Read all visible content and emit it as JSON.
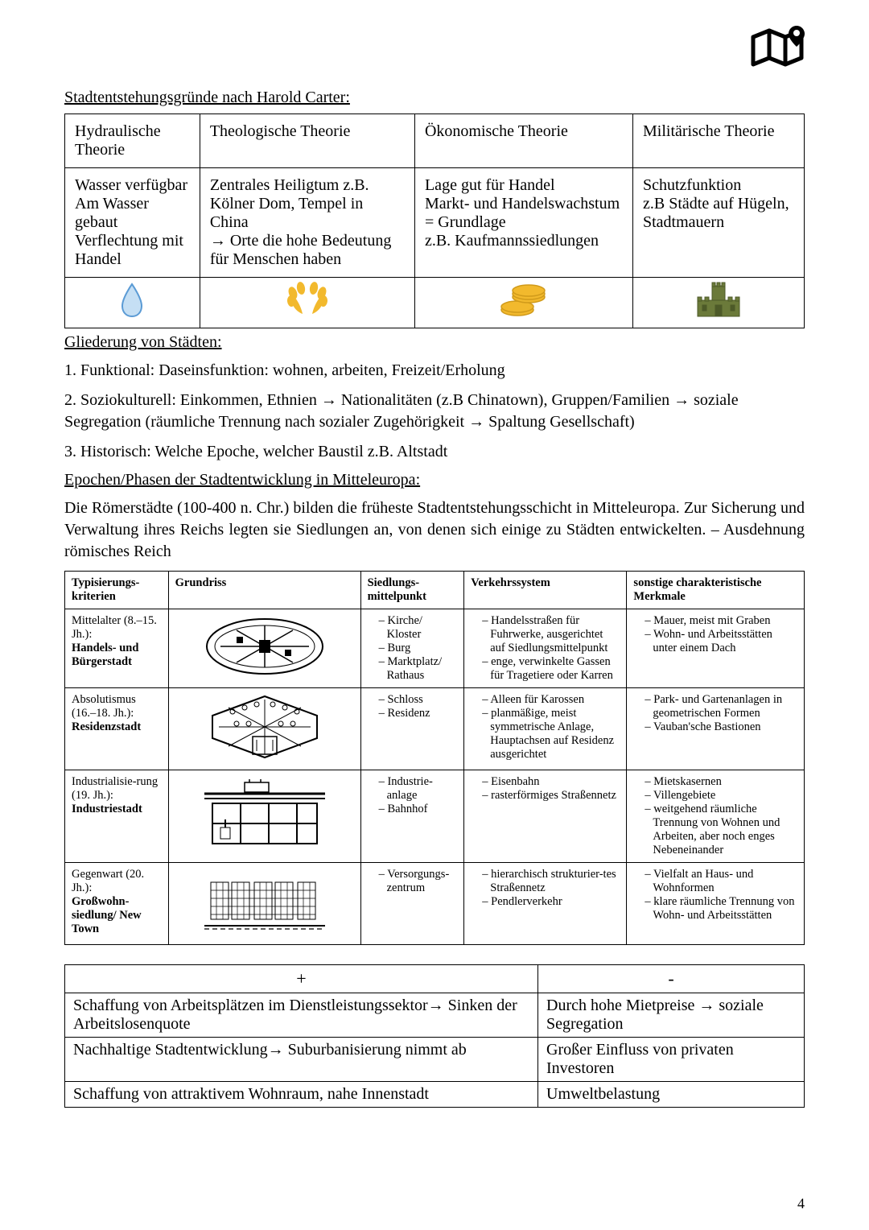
{
  "colors": {
    "text": "#000000",
    "background": "#ffffff",
    "border": "#000000",
    "waterFill": "#c5dff4",
    "waterStroke": "#5b9bd5",
    "laurel": "#f2b92d",
    "coinFill": "#f2b92d",
    "coinStroke": "#d09a1a",
    "castle": "#6b7a3a"
  },
  "pageNumber": "4",
  "titles": {
    "theory": "Stadtentstehungsgründe nach Harold Carter:",
    "gliederung": "Gliederung von Städten:",
    "epochen": "Epochen/Phasen der Stadtentwicklung in Mitteleuropa:"
  },
  "theory": {
    "headers": [
      "Hydraulische Theorie",
      "Theologische Theorie",
      "Ökonomische Theorie",
      "Militärische Theorie"
    ],
    "cells": [
      "Wasser verfügbar\nAm Wasser gebaut\nVerflechtung mit Handel",
      "Zentrales Heiligtum z.B. Kölner Dom, Tempel in China\n→ Orte die hohe Bedeutung für Menschen haben",
      "Lage gut für Handel\nMarkt- und Handelswachstum = Grundlage\nz.B. Kaufmannssiedlungen",
      "Schutzfunktion\nz.B Städte auf Hügeln, Stadtmauern"
    ],
    "iconNames": [
      "water-drop-icon",
      "laurel-wreath-icon",
      "coins-icon",
      "castle-icon"
    ]
  },
  "gliederung": {
    "items": [
      "1. Funktional: Daseinsfunktion: wohnen, arbeiten, Freizeit/Erholung",
      "2. Soziokulturell: Einkommen, Ethnien → Nationalitäten (z.B Chinatown), Gruppen/Familien → soziale Segregation (räumliche Trennung nach sozialer Zugehörigkeit → Spaltung Gesellschaft)",
      "3. Historisch: Welche Epoche, welcher Baustil z.B. Altstadt"
    ]
  },
  "epochIntro": "Die Römerstädte (100-400 n. Chr.) bilden die früheste Stadtentstehungsschicht in Mitteleuropa. Zur Sicherung und Verwaltung ihres Reichs legten sie Siedlungen an, von denen sich einige zu Städten entwickelten. – Ausdehnung römisches Reich",
  "epochTable": {
    "headers": [
      "Typisierungs-kriterien",
      "Grundriss",
      "Siedlungs-mittelpunkt",
      "Verkehrssystem",
      "sonstige charakteristische Merkmale"
    ],
    "colWidths": [
      "14%",
      "26%",
      "14%",
      "22%",
      "24%"
    ],
    "rows": [
      {
        "period": "Mittelalter (8.–15. Jh.):",
        "name": "Handels- und Bürgerstadt",
        "mittelpunkt": [
          "Kirche/ Kloster",
          "Burg",
          "Marktplatz/ Rathaus"
        ],
        "verkehr": [
          "Handelsstraßen für Fuhrwerke, ausgerichtet auf Siedlungsmittelpunkt",
          "enge, verwinkelte Gassen für Tragetiere oder Karren"
        ],
        "merkmale": [
          "Mauer, meist mit Graben",
          "Wohn- und Arbeitsstätten unter einem Dach"
        ]
      },
      {
        "period": "Absolutismus (16.–18. Jh.):",
        "name": "Residenzstadt",
        "mittelpunkt": [
          "Schloss",
          "Residenz"
        ],
        "verkehr": [
          "Alleen für Karossen",
          "planmäßige, meist symmetrische Anlage, Hauptachsen auf Residenz ausgerichtet"
        ],
        "merkmale": [
          "Park- und Gartenanlagen in geometrischen Formen",
          "Vauban'sche Bastionen"
        ]
      },
      {
        "period": "Industrialisie-rung (19. Jh.):",
        "name": "Industriestadt",
        "mittelpunkt": [
          "Industrie-anlage",
          "Bahnhof"
        ],
        "verkehr": [
          "Eisenbahn",
          "rasterförmiges Straßennetz"
        ],
        "merkmale": [
          "Mietskasernen",
          "Villengebiete",
          "weitgehend räumliche Trennung von Wohnen und Arbeiten, aber noch enges Nebeneinander"
        ]
      },
      {
        "period": "Gegenwart (20. Jh.):",
        "name": "Großwohn-siedlung/ New Town",
        "mittelpunkt": [
          "Versorgungs-zentrum"
        ],
        "verkehr": [
          "hierarchisch strukturier-tes Straßennetz",
          "Pendlerverkehr"
        ],
        "merkmale": [
          "Vielfalt an Haus- und Wohnformen",
          "klare räumliche Trennung von Wohn- und Arbeitsstätten"
        ]
      }
    ]
  },
  "plusMinus": {
    "headers": [
      "+",
      "-"
    ],
    "rows": [
      [
        "Schaffung von Arbeitsplätzen im Dienstleistungssektor→ Sinken der Arbeitslosenquote",
        "Durch hohe Mietpreise → soziale Segregation"
      ],
      [
        "Nachhaltige Stadtentwicklung→ Suburbanisierung nimmt ab",
        "Großer Einfluss von privaten Investoren"
      ],
      [
        "Schaffung von attraktivem Wohnraum, nahe Innenstadt",
        "Umweltbelastung"
      ]
    ]
  }
}
